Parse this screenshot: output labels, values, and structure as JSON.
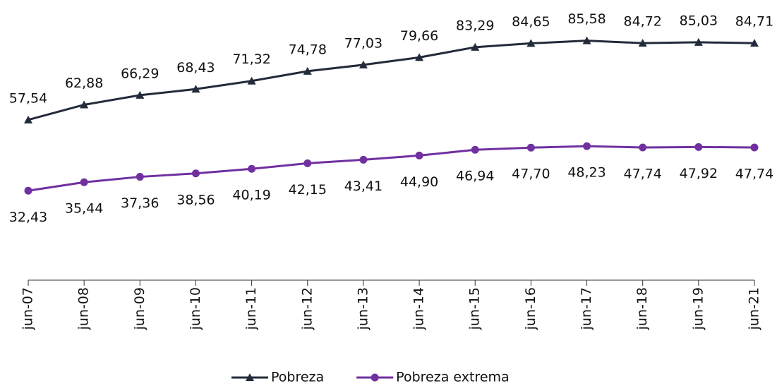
{
  "chart_data": {
    "type": "line",
    "categories": [
      "jun-07",
      "jun-08",
      "jun-09",
      "jun-10",
      "jun-11",
      "jun-12",
      "jun-13",
      "jun-14",
      "jun-15",
      "jun-16",
      "jun-17",
      "jun-18",
      "jun-19",
      "jun-21"
    ],
    "series": [
      {
        "name": "Pobreza",
        "color": "#232b3a",
        "marker": "triangle",
        "label_position": "above",
        "values": [
          57.54,
          62.88,
          66.29,
          68.43,
          71.32,
          74.78,
          77.03,
          79.66,
          83.29,
          84.65,
          85.58,
          84.72,
          85.03,
          84.71
        ],
        "value_labels": [
          "57,54",
          "62,88",
          "66,29",
          "68,43",
          "71,32",
          "74,78",
          "77,03",
          "79,66",
          "83,29",
          "84,65",
          "85,58",
          "84,72",
          "85,03",
          "84,71"
        ]
      },
      {
        "name": "Pobreza extrema",
        "color": "#7030a0",
        "marker": "circle",
        "label_position": "below",
        "values": [
          32.43,
          35.44,
          37.36,
          38.56,
          40.19,
          42.15,
          43.41,
          44.9,
          46.94,
          47.7,
          48.23,
          47.74,
          47.92,
          47.74
        ],
        "value_labels": [
          "32,43",
          "35,44",
          "37,36",
          "38,56",
          "40,19",
          "42,15",
          "43,41",
          "44,90",
          "46,94",
          "47,70",
          "48,23",
          "47,74",
          "47,92",
          "47,74"
        ]
      }
    ],
    "ylim": [
      0,
      90
    ],
    "legend": "bottom"
  }
}
